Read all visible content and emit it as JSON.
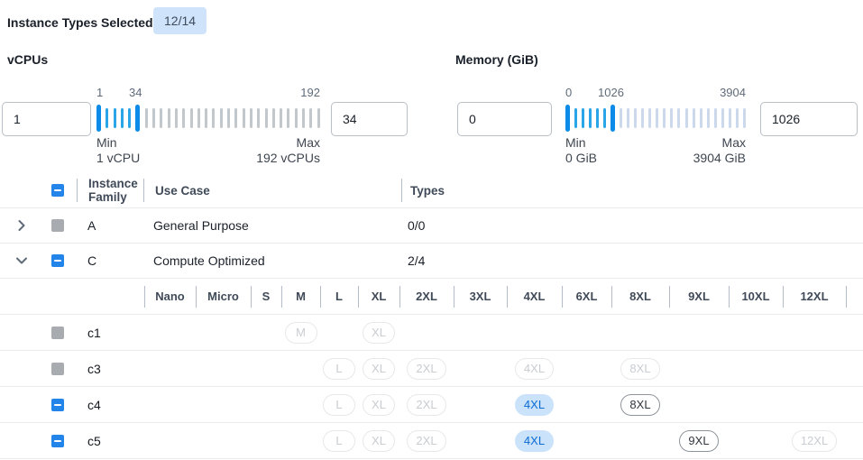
{
  "topbar": {
    "label": "Instance Types Selected:",
    "badge": "12/14"
  },
  "filters": [
    {
      "id": "vcpus",
      "title": "vCPUs",
      "min_input": "1",
      "max_input": "34",
      "scale_min": "1",
      "scale_current": "34",
      "scale_max": "192",
      "min_label": "Min",
      "min_value": "1 vCPU",
      "max_label": "Max",
      "max_value": "192 vCPUs",
      "slider": {
        "ticks": 30,
        "handle_start": 0,
        "handle_end": 5
      }
    },
    {
      "id": "memory",
      "title": "Memory (GiB)",
      "min_input": "0",
      "max_input": "1026",
      "scale_min": "0",
      "scale_current": "1026",
      "scale_max": "3904",
      "min_label": "Min",
      "min_value": "0 GiB",
      "max_label": "Max",
      "max_value": "3904 GiB",
      "slider": {
        "ticks": 25,
        "handle_start": 0,
        "handle_end": 6
      }
    }
  ],
  "table": {
    "select_all_state": "indeterminate",
    "columns": {
      "family": "Instance Family",
      "use_case": "Use Case",
      "types": "Types"
    },
    "size_columns": [
      "Nano",
      "Micro",
      "S",
      "M",
      "L",
      "XL",
      "2XL",
      "3XL",
      "4XL",
      "6XL",
      "8XL",
      "9XL",
      "10XL",
      "12XL"
    ],
    "groups": [
      {
        "family": "A",
        "use_case": "General Purpose",
        "types": "0/0",
        "expanded": false,
        "checkbox": "disabled",
        "children": []
      },
      {
        "family": "C",
        "use_case": "Compute Optimized",
        "types": "2/4",
        "expanded": true,
        "checkbox": "indeterminate",
        "children": [
          {
            "name": "c1",
            "checkbox": "disabled",
            "sizes": [
              {
                "label": "M",
                "col": 3,
                "state": "disabled"
              },
              {
                "label": "XL",
                "col": 5,
                "state": "disabled"
              }
            ]
          },
          {
            "name": "c3",
            "checkbox": "disabled",
            "sizes": [
              {
                "label": "L",
                "col": 4,
                "state": "disabled"
              },
              {
                "label": "XL",
                "col": 5,
                "state": "disabled"
              },
              {
                "label": "2XL",
                "col": 6,
                "state": "disabled"
              },
              {
                "label": "4XL",
                "col": 8,
                "state": "disabled"
              },
              {
                "label": "8XL",
                "col": 10,
                "state": "disabled"
              }
            ]
          },
          {
            "name": "c4",
            "checkbox": "indeterminate",
            "sizes": [
              {
                "label": "L",
                "col": 4,
                "state": "disabled"
              },
              {
                "label": "XL",
                "col": 5,
                "state": "disabled"
              },
              {
                "label": "2XL",
                "col": 6,
                "state": "disabled"
              },
              {
                "label": "4XL",
                "col": 8,
                "state": "selected"
              },
              {
                "label": "8XL",
                "col": 10,
                "state": "enabled"
              }
            ]
          },
          {
            "name": "c5",
            "checkbox": "indeterminate",
            "sizes": [
              {
                "label": "L",
                "col": 4,
                "state": "disabled"
              },
              {
                "label": "XL",
                "col": 5,
                "state": "disabled"
              },
              {
                "label": "2XL",
                "col": 6,
                "state": "disabled"
              },
              {
                "label": "4XL",
                "col": 8,
                "state": "selected"
              },
              {
                "label": "9XL",
                "col": 11,
                "state": "enabled"
              },
              {
                "label": "12XL",
                "col": 13,
                "state": "disabled"
              }
            ]
          }
        ]
      }
    ]
  },
  "colors": {
    "accent_blue": "#2385ea",
    "slider_handle": "#0c8ce8",
    "slider_tick_active": "#2aa5e8",
    "slider_tick_inactive_vcpu": "#c2c7cc",
    "slider_tick_inactive_memory": "#ccd9ec",
    "badge_bg": "#cfe4fa",
    "pill_selected_bg": "#cbe3fa",
    "pill_selected_text": "#0b6bd3",
    "disabled_gray": "#a8acb1",
    "divider": "#e9ebed"
  }
}
